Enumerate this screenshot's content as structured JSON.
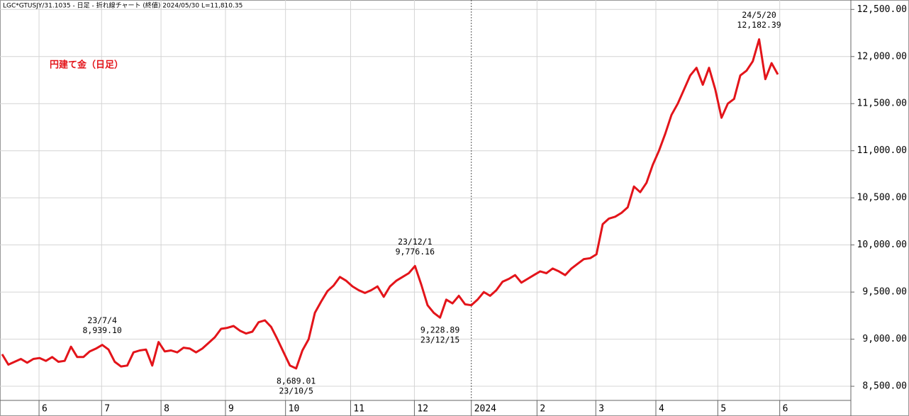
{
  "header": "LGC*GTUSJY/31.1035 - 日足 - 折れ線チャート (終値)  2024/05/30 L=11,810.35",
  "chart_data": {
    "type": "line",
    "title": "円建て金（日足）",
    "series": [
      {
        "color": "#e3141a",
        "values": [
          8840,
          8730,
          8760,
          8790,
          8750,
          8790,
          8800,
          8770,
          8810,
          8760,
          8770,
          8920,
          8810,
          8810,
          8870,
          8900,
          8939.1,
          8890,
          8760,
          8710,
          8720,
          8860,
          8880,
          8890,
          8720,
          8970,
          8870,
          8880,
          8860,
          8910,
          8900,
          8860,
          8900,
          8960,
          9020,
          9110,
          9120,
          9140,
          9090,
          9060,
          9080,
          9180,
          9200,
          9130,
          9000,
          8860,
          8720,
          8689.01,
          8880,
          9000,
          9280,
          9400,
          9510,
          9570,
          9660,
          9620,
          9560,
          9520,
          9490,
          9520,
          9560,
          9450,
          9560,
          9620,
          9660,
          9700,
          9776.16,
          9580,
          9360,
          9280,
          9228.89,
          9420,
          9380,
          9460,
          9370,
          9360,
          9420,
          9500,
          9460,
          9520,
          9610,
          9640,
          9680,
          9600,
          9640,
          9680,
          9720,
          9700,
          9750,
          9720,
          9680,
          9750,
          9800,
          9850,
          9860,
          9900,
          10220,
          10280,
          10300,
          10340,
          10400,
          10620,
          10560,
          10660,
          10850,
          11000,
          11180,
          11380,
          11500,
          11650,
          11800,
          11880,
          11700,
          11880,
          11650,
          11350,
          11500,
          11550,
          11800,
          11850,
          11950,
          12182.39,
          11760,
          11930,
          11810.35
        ]
      }
    ],
    "xlim": [
      -0.34,
      135.67
    ],
    "xticks": [
      {
        "value": 5.9,
        "label": "6"
      },
      {
        "value": 15.9,
        "label": "7"
      },
      {
        "value": 25.4,
        "label": "8"
      },
      {
        "value": 35.7,
        "label": "9"
      },
      {
        "value": 45.3,
        "label": "10"
      },
      {
        "value": 55.7,
        "label": "11"
      },
      {
        "value": 65.9,
        "label": "12"
      },
      {
        "value": 75.0,
        "label": "2024"
      },
      {
        "value": 85.5,
        "label": "2"
      },
      {
        "value": 94.9,
        "label": "3"
      },
      {
        "value": 104.5,
        "label": "4"
      },
      {
        "value": 114.4,
        "label": "5"
      },
      {
        "value": 124.3,
        "label": "6"
      }
    ],
    "ylim": [
      8350,
      12600
    ],
    "yticks": [
      {
        "value": 8500,
        "label": "8,500.00"
      },
      {
        "value": 9000,
        "label": "9,000.00"
      },
      {
        "value": 9500,
        "label": "9,500.00"
      },
      {
        "value": 10000,
        "label": "10,000.00"
      },
      {
        "value": 10500,
        "label": "10,500.00"
      },
      {
        "value": 11000,
        "label": "11,000.00"
      },
      {
        "value": 11500,
        "label": "11,500.00"
      },
      {
        "value": 12000,
        "label": "12,000.00"
      },
      {
        "value": 12500,
        "label": "12,500.00"
      }
    ],
    "grid": true,
    "annotations": [
      {
        "label": "23/7/4",
        "value": 8939.1,
        "value_label": "8,939.10"
      },
      {
        "label": "23/10/5",
        "value": 8689.01,
        "value_label": "8,689.01"
      },
      {
        "label": "23/12/1",
        "value": 9776.16,
        "value_label": "9,776.16"
      },
      {
        "label": "23/12/15",
        "value": 9228.89,
        "value_label": "9,228.89"
      },
      {
        "label": "24/5/20",
        "value": 12182.39,
        "value_label": "12,182.39"
      }
    ]
  }
}
